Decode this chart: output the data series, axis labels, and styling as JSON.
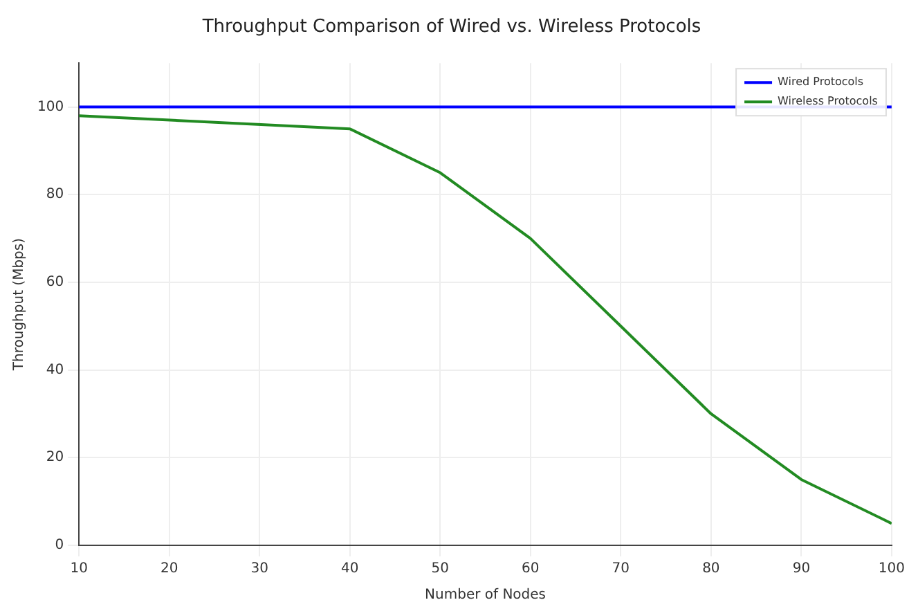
{
  "chart_data": {
    "type": "line",
    "title": "Throughput Comparison of Wired vs. Wireless Protocols",
    "xlabel": "Number of Nodes",
    "ylabel": "Throughput (Mbps)",
    "series": [
      {
        "name": "Wired Protocols",
        "color": "#0000ff",
        "x": [
          10,
          100
        ],
        "values": [
          100,
          100
        ]
      },
      {
        "name": "Wireless Protocols",
        "color": "#228b22",
        "x": [
          10,
          40,
          50,
          60,
          70,
          80,
          90,
          100
        ],
        "values": [
          98,
          95,
          85,
          70,
          50,
          30,
          15,
          5
        ]
      }
    ],
    "xlim": [
      10,
      100
    ],
    "xticks": [
      10,
      20,
      30,
      40,
      50,
      60,
      70,
      80,
      90,
      100
    ],
    "ylim": [
      0,
      110
    ],
    "yticks": [
      0,
      20,
      40,
      60,
      80,
      100
    ],
    "grid": true,
    "legend": "top right",
    "marker": "none",
    "line_style": "solid"
  }
}
